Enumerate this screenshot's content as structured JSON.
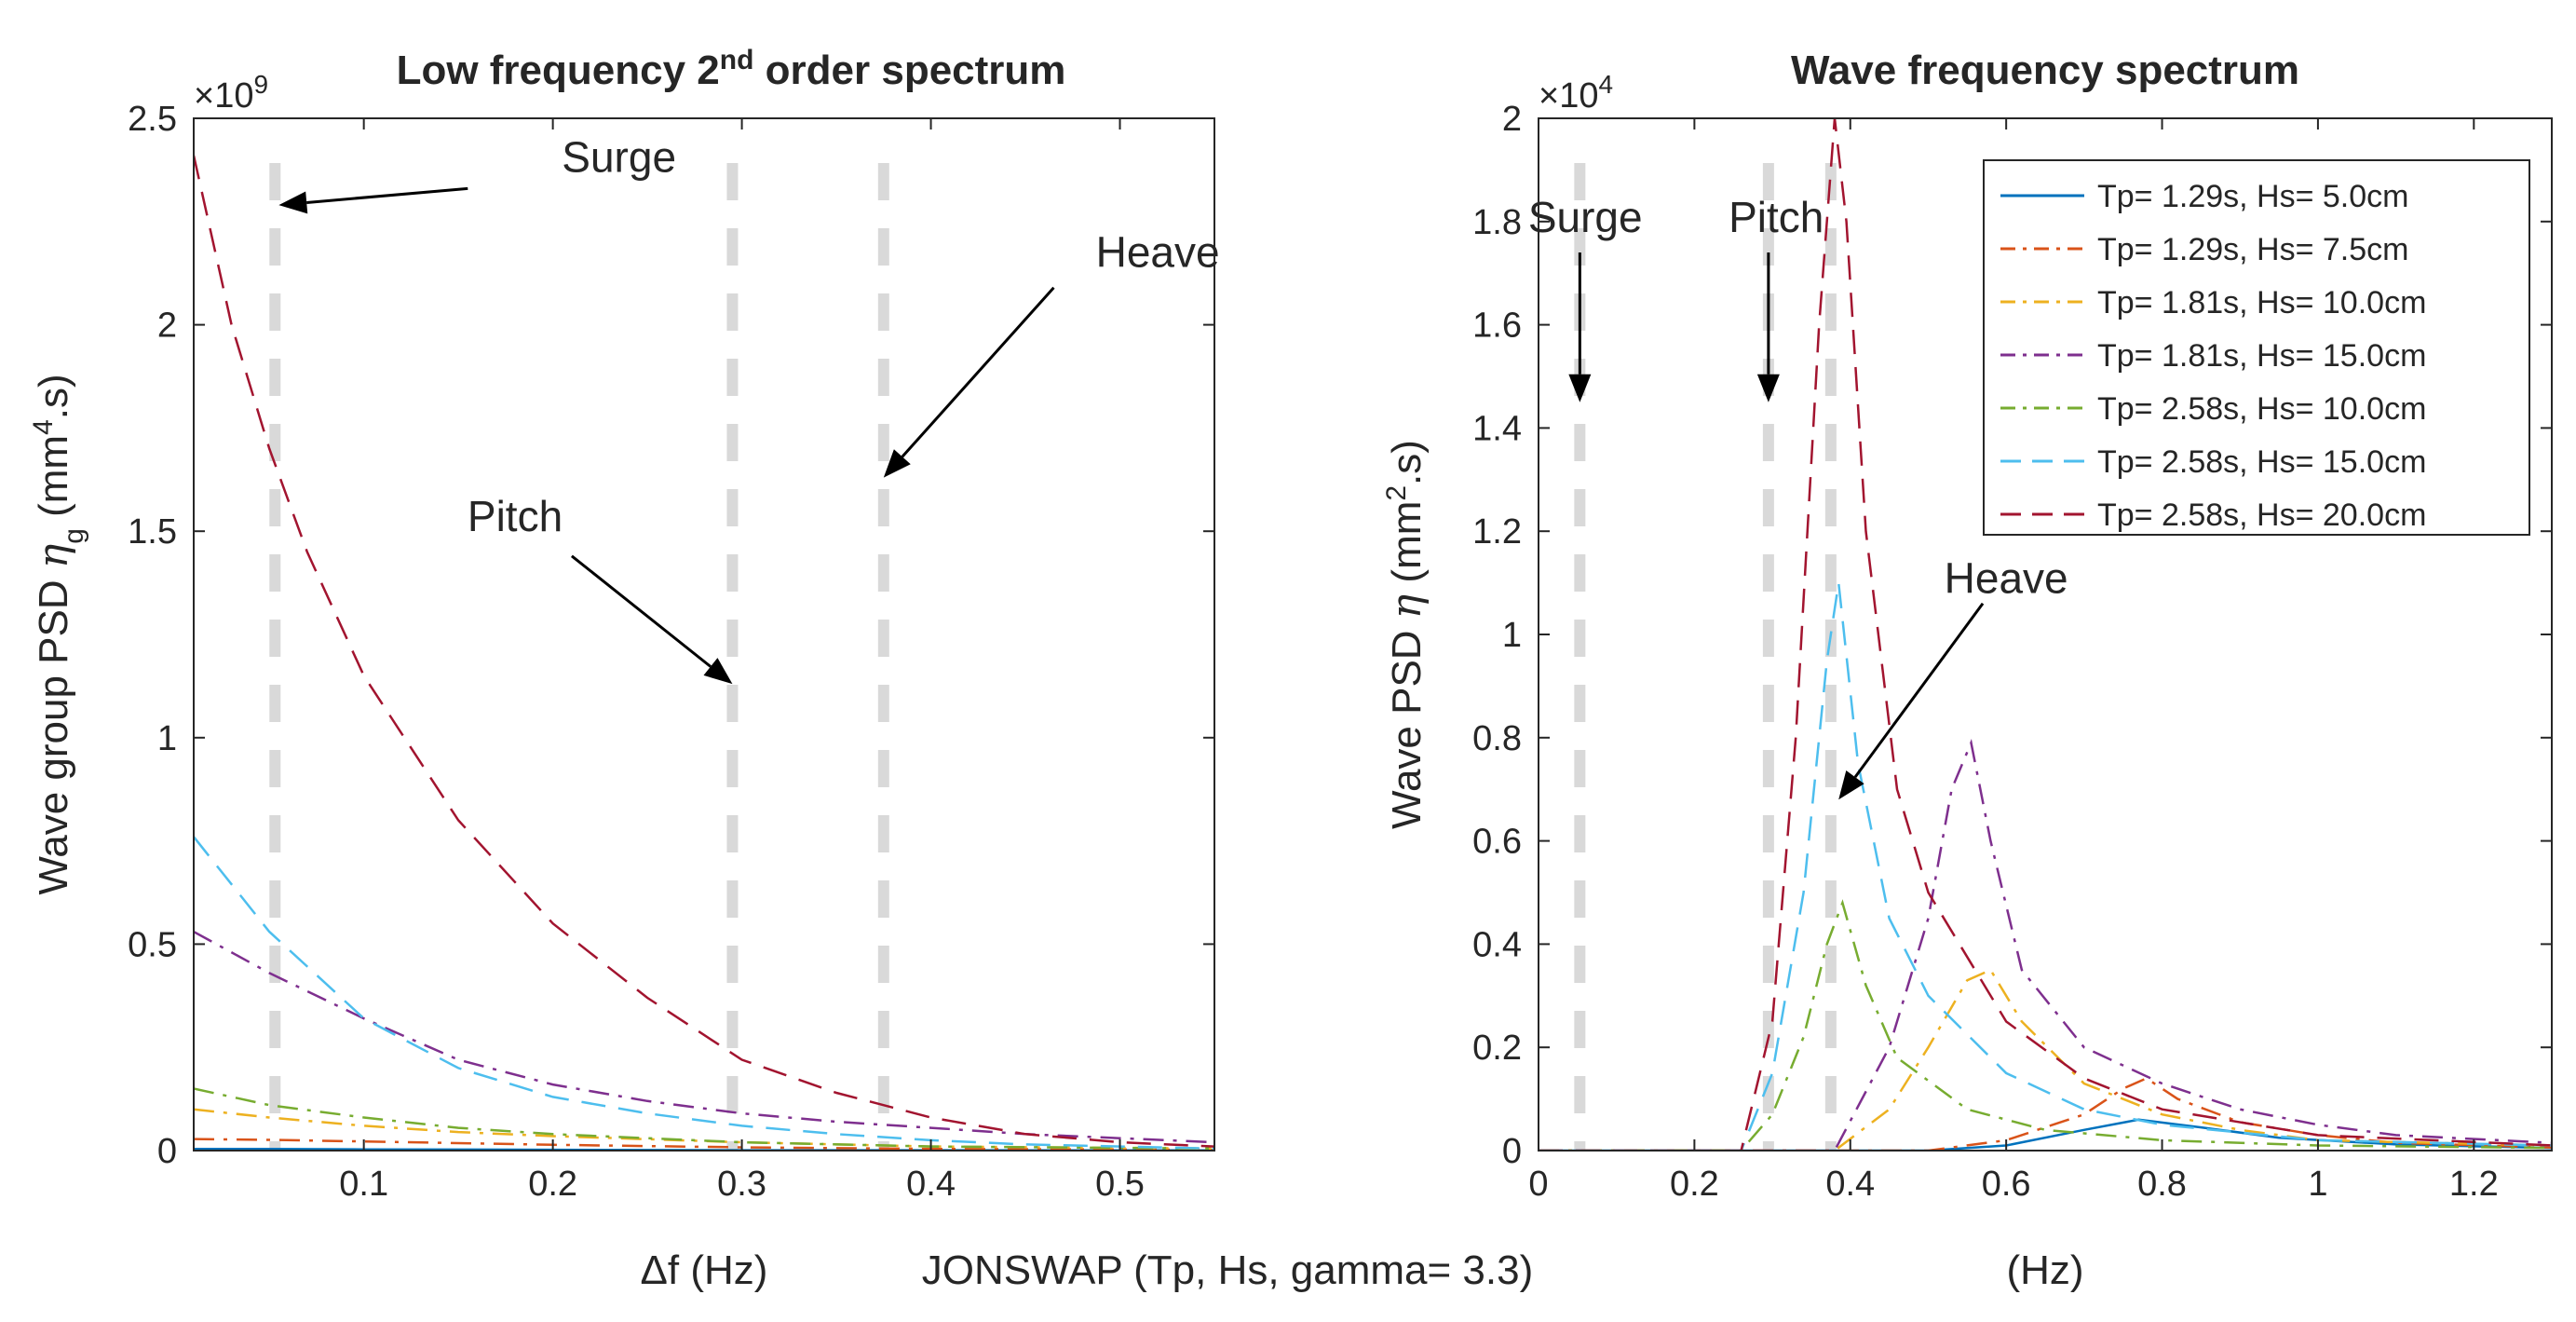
{
  "figure_caption": "JONSWAP (Tp, Hs, gamma= 3.3)",
  "colors": {
    "series": [
      "#0072BD",
      "#D95319",
      "#EDB120",
      "#7E2F8E",
      "#77AC30",
      "#4DBEEE",
      "#A2142F"
    ],
    "vline": "#D9D9D9",
    "axis": "#262626"
  },
  "chart_data": [
    {
      "type": "line",
      "title": "Low frequency 2",
      "title_sup": "nd",
      "title_tail": " order spectrum",
      "xlabel": "Δf (Hz)",
      "ylabel_main": "Wave group PSD ",
      "ylabel_eta": "η",
      "ylabel_sub": "g",
      "ylabel_units": " (mm",
      "ylabel_sup": "4",
      "ylabel_end": ".s)",
      "exponent_base": "×10",
      "exponent_power": "9",
      "xlim": [
        0.01,
        0.55
      ],
      "ylim": [
        0,
        2.5
      ],
      "xticks": [
        0.1,
        0.2,
        0.3,
        0.4,
        0.5
      ],
      "xtick_labels": [
        "0.1",
        "0.2",
        "0.3",
        "0.4",
        "0.5"
      ],
      "yticks": [
        0,
        0.5,
        1,
        1.5,
        2,
        2.5
      ],
      "ytick_labels": [
        "0",
        "0.5",
        "1",
        "1.5",
        "2",
        "2.5"
      ],
      "vlines": [
        0.053,
        0.295,
        0.375
      ],
      "annotations": [
        {
          "text": "Surge",
          "tx": 0.235,
          "ty": 2.37,
          "ax": 0.155,
          "ay": 2.33,
          "hx": 0.055,
          "hy": 2.29,
          "anchor": "middle"
        },
        {
          "text": "Pitch",
          "tx": 0.18,
          "ty": 1.5,
          "ax": 0.21,
          "ay": 1.44,
          "hx": 0.295,
          "hy": 1.13,
          "anchor": "middle"
        },
        {
          "text": "Heave",
          "tx": 0.52,
          "ty": 2.14,
          "ax": 0.465,
          "ay": 2.09,
          "hx": 0.375,
          "hy": 1.63,
          "anchor": "middle"
        }
      ],
      "series": [
        {
          "name": "Tp= 1.29s, Hs= 5.0cm",
          "dash": "solid",
          "x": [
            0.01,
            0.05,
            0.1,
            0.2,
            0.3,
            0.4,
            0.55
          ],
          "y": [
            0.004,
            0.004,
            0.003,
            0.002,
            0.001,
            0.001,
            0.0005
          ]
        },
        {
          "name": "Tp= 1.29s, Hs= 7.5cm",
          "dash": "dashdot",
          "x": [
            0.01,
            0.05,
            0.1,
            0.2,
            0.3,
            0.4,
            0.55
          ],
          "y": [
            0.028,
            0.026,
            0.022,
            0.014,
            0.008,
            0.004,
            0.002
          ]
        },
        {
          "name": "Tp= 1.81s, Hs= 10.0cm",
          "dash": "dashdot",
          "x": [
            0.01,
            0.05,
            0.1,
            0.15,
            0.2,
            0.3,
            0.4,
            0.55
          ],
          "y": [
            0.1,
            0.08,
            0.06,
            0.045,
            0.035,
            0.02,
            0.01,
            0.005
          ]
        },
        {
          "name": "Tp= 1.81s, Hs= 15.0cm",
          "dash": "dashdot",
          "x": [
            0.01,
            0.05,
            0.1,
            0.15,
            0.2,
            0.25,
            0.3,
            0.35,
            0.4,
            0.45,
            0.5,
            0.55
          ],
          "y": [
            0.53,
            0.43,
            0.32,
            0.22,
            0.16,
            0.12,
            0.09,
            0.07,
            0.055,
            0.04,
            0.03,
            0.02
          ]
        },
        {
          "name": "Tp= 2.58s, Hs= 10.0cm",
          "dash": "dashdot",
          "x": [
            0.01,
            0.05,
            0.1,
            0.15,
            0.2,
            0.3,
            0.4,
            0.55
          ],
          "y": [
            0.15,
            0.11,
            0.08,
            0.055,
            0.04,
            0.02,
            0.01,
            0.005
          ]
        },
        {
          "name": "Tp= 2.58s, Hs= 15.0cm",
          "dash": "dashed",
          "x": [
            0.01,
            0.05,
            0.1,
            0.15,
            0.2,
            0.25,
            0.3,
            0.35,
            0.4,
            0.45,
            0.55
          ],
          "y": [
            0.76,
            0.53,
            0.32,
            0.2,
            0.13,
            0.09,
            0.06,
            0.04,
            0.025,
            0.015,
            0.005
          ]
        },
        {
          "name": "Tp= 2.58s, Hs= 20.0cm",
          "dash": "dashed",
          "x": [
            0.01,
            0.03,
            0.05,
            0.07,
            0.1,
            0.15,
            0.2,
            0.25,
            0.3,
            0.35,
            0.4,
            0.45,
            0.5,
            0.55
          ],
          "y": [
            2.41,
            2.0,
            1.7,
            1.45,
            1.15,
            0.8,
            0.55,
            0.37,
            0.22,
            0.14,
            0.08,
            0.04,
            0.02,
            0.01
          ]
        }
      ]
    },
    {
      "type": "line",
      "title": "Wave frequency spectrum",
      "xlabel": "(Hz)",
      "ylabel_main": "Wave PSD ",
      "ylabel_eta": "η",
      "ylabel_units": " (mm",
      "ylabel_sup": "2",
      "ylabel_end": ".s)",
      "exponent_base": "×10",
      "exponent_power": "4",
      "xlim": [
        0,
        1.3
      ],
      "ylim": [
        0,
        2
      ],
      "xticks": [
        0,
        0.2,
        0.4,
        0.6,
        0.8,
        1,
        1.2
      ],
      "xtick_labels": [
        "0",
        "0.2",
        "0.4",
        "0.6",
        "0.8",
        "1",
        "1.2"
      ],
      "yticks": [
        0,
        0.2,
        0.4,
        0.6,
        0.8,
        1,
        1.2,
        1.4,
        1.6,
        1.8,
        2
      ],
      "ytick_labels": [
        "0",
        "0.2",
        "0.4",
        "0.6",
        "0.8",
        "1",
        "1.2",
        "1.4",
        "1.6",
        "1.8",
        "2"
      ],
      "vlines": [
        0.053,
        0.295,
        0.375
      ],
      "legend_position": "top-right",
      "annotations": [
        {
          "text": "Surge",
          "tx": 0.06,
          "ty": 1.78,
          "ax": 0.053,
          "ay": 1.74,
          "hx": 0.053,
          "hy": 1.45,
          "anchor": "middle"
        },
        {
          "text": "Pitch",
          "tx": 0.305,
          "ty": 1.78,
          "ax": 0.295,
          "ay": 1.74,
          "hx": 0.295,
          "hy": 1.45,
          "anchor": "middle"
        },
        {
          "text": "Heave",
          "tx": 0.6,
          "ty": 1.08,
          "ax": 0.57,
          "ay": 1.06,
          "hx": 0.385,
          "hy": 0.68,
          "anchor": "middle"
        }
      ],
      "series": [
        {
          "name": "Tp= 1.29s, Hs= 5.0cm",
          "dash": "solid",
          "x": [
            0,
            0.5,
            0.6,
            0.7,
            0.77,
            0.85,
            0.95,
            1.1,
            1.3
          ],
          "y": [
            0,
            0,
            0.01,
            0.04,
            0.06,
            0.045,
            0.025,
            0.012,
            0.005
          ]
        },
        {
          "name": "Tp= 1.29s, Hs= 7.5cm",
          "dash": "dashdot",
          "x": [
            0,
            0.5,
            0.6,
            0.7,
            0.75,
            0.78,
            0.82,
            0.9,
            1.0,
            1.1,
            1.3
          ],
          "y": [
            0,
            0,
            0.02,
            0.07,
            0.12,
            0.14,
            0.1,
            0.055,
            0.03,
            0.015,
            0.006
          ]
        },
        {
          "name": "Tp= 1.81s, Hs= 10.0cm",
          "dash": "dashdot",
          "x": [
            0,
            0.38,
            0.45,
            0.5,
            0.55,
            0.58,
            0.62,
            0.7,
            0.8,
            0.9,
            1.0,
            1.3
          ],
          "y": [
            0,
            0,
            0.08,
            0.2,
            0.33,
            0.35,
            0.25,
            0.13,
            0.07,
            0.04,
            0.02,
            0.01
          ]
        },
        {
          "name": "Tp= 1.81s, Hs= 15.0cm",
          "dash": "dashdot",
          "x": [
            0,
            0.38,
            0.45,
            0.5,
            0.53,
            0.555,
            0.58,
            0.62,
            0.7,
            0.8,
            0.9,
            1.0,
            1.1,
            1.3
          ],
          "y": [
            0,
            0,
            0.2,
            0.45,
            0.7,
            0.79,
            0.6,
            0.35,
            0.2,
            0.13,
            0.08,
            0.05,
            0.03,
            0.015
          ]
        },
        {
          "name": "Tp= 2.58s, Hs= 10.0cm",
          "dash": "dashdot",
          "x": [
            0,
            0.26,
            0.3,
            0.34,
            0.37,
            0.39,
            0.42,
            0.46,
            0.55,
            0.65,
            0.8,
            1.0,
            1.3
          ],
          "y": [
            0,
            0,
            0.07,
            0.22,
            0.4,
            0.48,
            0.32,
            0.18,
            0.08,
            0.04,
            0.02,
            0.01,
            0.005
          ]
        },
        {
          "name": "Tp= 2.58s, Hs= 15.0cm",
          "dash": "dashed",
          "x": [
            0,
            0.26,
            0.3,
            0.34,
            0.37,
            0.385,
            0.41,
            0.45,
            0.5,
            0.6,
            0.7,
            0.8,
            1.0,
            1.3
          ],
          "y": [
            0,
            0,
            0.15,
            0.5,
            0.95,
            1.1,
            0.75,
            0.45,
            0.3,
            0.15,
            0.08,
            0.05,
            0.02,
            0.01
          ]
        },
        {
          "name": "Tp= 2.58s, Hs= 20.0cm",
          "dash": "dashed",
          "x": [
            0,
            0.26,
            0.3,
            0.33,
            0.36,
            0.38,
            0.395,
            0.42,
            0.46,
            0.5,
            0.6,
            0.7,
            0.8,
            1.0,
            1.3
          ],
          "y": [
            0,
            0,
            0.25,
            0.8,
            1.6,
            2.0,
            1.8,
            1.2,
            0.7,
            0.5,
            0.25,
            0.14,
            0.08,
            0.03,
            0.01
          ]
        }
      ]
    }
  ]
}
